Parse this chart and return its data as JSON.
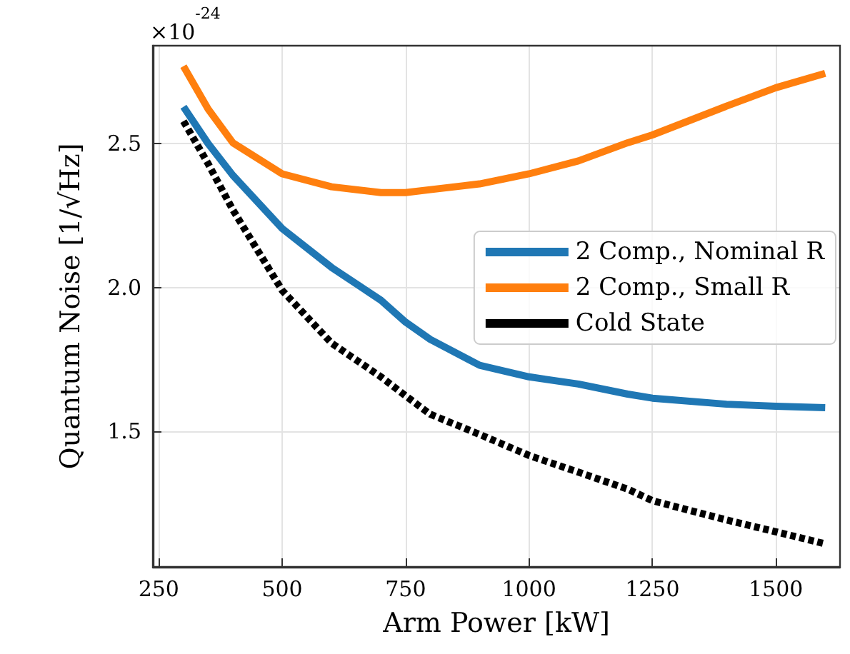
{
  "chart_data": {
    "type": "line",
    "xlabel": "Arm Power [kW]",
    "ylabel": "Quantum Noise [1/√Hz]",
    "annotations": [
      "×10$^{-24}$"
    ],
    "xlim": [
      238,
      1630
    ],
    "xticks": [
      250,
      500,
      750,
      1000,
      1250,
      1500
    ],
    "ylim": [
      1.03,
      2.84
    ],
    "yticks": [
      {
        "value": 1.5,
        "label": "1.5"
      },
      {
        "value": 2,
        "label": "2.0"
      },
      {
        "value": 2.5,
        "label": "2.5"
      }
    ],
    "x": [
      300,
      350,
      400,
      500,
      600,
      700,
      750,
      800,
      900,
      1000,
      1100,
      1200,
      1250,
      1400,
      1500,
      1600
    ],
    "series": [
      {
        "name": "2 Comp., Nominal R",
        "color": "#1f77b4",
        "line_style": "solid",
        "values": [
          2.628,
          2.5,
          2.39,
          2.205,
          2.07,
          1.956,
          1.88,
          1.82,
          1.73,
          1.69,
          1.665,
          1.63,
          1.616,
          1.595,
          1.588,
          1.583
        ]
      },
      {
        "name": "2 Comp., Small R",
        "color": "#ff7f0e",
        "line_style": "solid",
        "values": [
          2.769,
          2.62,
          2.503,
          2.395,
          2.35,
          2.33,
          2.33,
          2.34,
          2.36,
          2.395,
          2.44,
          2.503,
          2.53,
          2.63,
          2.694,
          2.744
        ]
      },
      {
        "name": "Cold State",
        "color": "#000000",
        "line_style": "dashed",
        "values": [
          2.578,
          2.43,
          2.27,
          1.99,
          1.807,
          1.69,
          1.624,
          1.56,
          1.49,
          1.417,
          1.359,
          1.3,
          1.26,
          1.193,
          1.152,
          1.11
        ]
      }
    ],
    "grid": true,
    "legend": "right",
    "marker": "none"
  }
}
